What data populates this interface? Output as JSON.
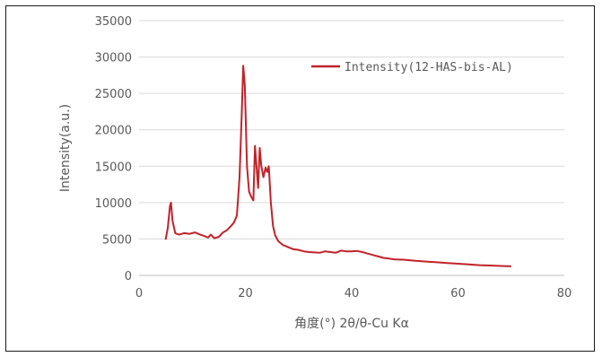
{
  "chart_data": {
    "type": "line",
    "title": "",
    "xlabel": "角度(°) 2θ/θ-Cu Kα",
    "ylabel": "Intensity(a.u.)",
    "xlim": [
      0,
      80
    ],
    "ylim": [
      0,
      35000
    ],
    "xticks": [
      0,
      20,
      40,
      60,
      80
    ],
    "yticks": [
      0,
      5000,
      10000,
      15000,
      20000,
      25000,
      30000,
      35000
    ],
    "grid": "horizontal",
    "legend": "top-right",
    "series": [
      {
        "name": "Intensity(12-HAS-bis-AL)",
        "color": "#c0232a",
        "x": [
          5,
          5.4,
          5.8,
          6.0,
          6.3,
          6.8,
          7.5,
          8.5,
          9.5,
          10.5,
          11.5,
          12.3,
          13.0,
          13.5,
          14.2,
          15.0,
          15.8,
          16.5,
          17.2,
          17.8,
          18.4,
          18.9,
          19.3,
          19.6,
          19.9,
          20.3,
          20.7,
          21.1,
          21.5,
          21.8,
          22.1,
          22.4,
          22.7,
          23.0,
          23.4,
          23.8,
          24.1,
          24.4,
          24.8,
          25.2,
          25.6,
          26.2,
          27.0,
          28.0,
          29.0,
          30.0,
          31.0,
          32.0,
          33.0,
          34.0,
          35.0,
          36.0,
          37.0,
          38.0,
          39.0,
          40.0,
          41.0,
          42.0,
          43.0,
          44.0,
          45.0,
          46.0,
          47.0,
          48.0,
          50.0,
          52.0,
          54.0,
          56.0,
          58.0,
          60.0,
          62.0,
          64.0,
          66.0,
          68.0,
          70.0
        ],
        "y": [
          4900,
          6500,
          9500,
          10000,
          7500,
          5800,
          5600,
          5800,
          5700,
          5900,
          5600,
          5400,
          5200,
          5600,
          5100,
          5300,
          5900,
          6200,
          6700,
          7200,
          8200,
          13500,
          22000,
          28800,
          26000,
          15000,
          11500,
          10800,
          10300,
          17800,
          15000,
          12000,
          17500,
          15000,
          13500,
          14800,
          14200,
          15000,
          10000,
          6800,
          5500,
          4700,
          4200,
          3900,
          3600,
          3500,
          3300,
          3200,
          3150,
          3100,
          3300,
          3200,
          3100,
          3400,
          3300,
          3300,
          3350,
          3200,
          3000,
          2800,
          2600,
          2400,
          2300,
          2200,
          2150,
          2000,
          1900,
          1800,
          1700,
          1600,
          1500,
          1400,
          1350,
          1300,
          1250
        ]
      }
    ]
  }
}
